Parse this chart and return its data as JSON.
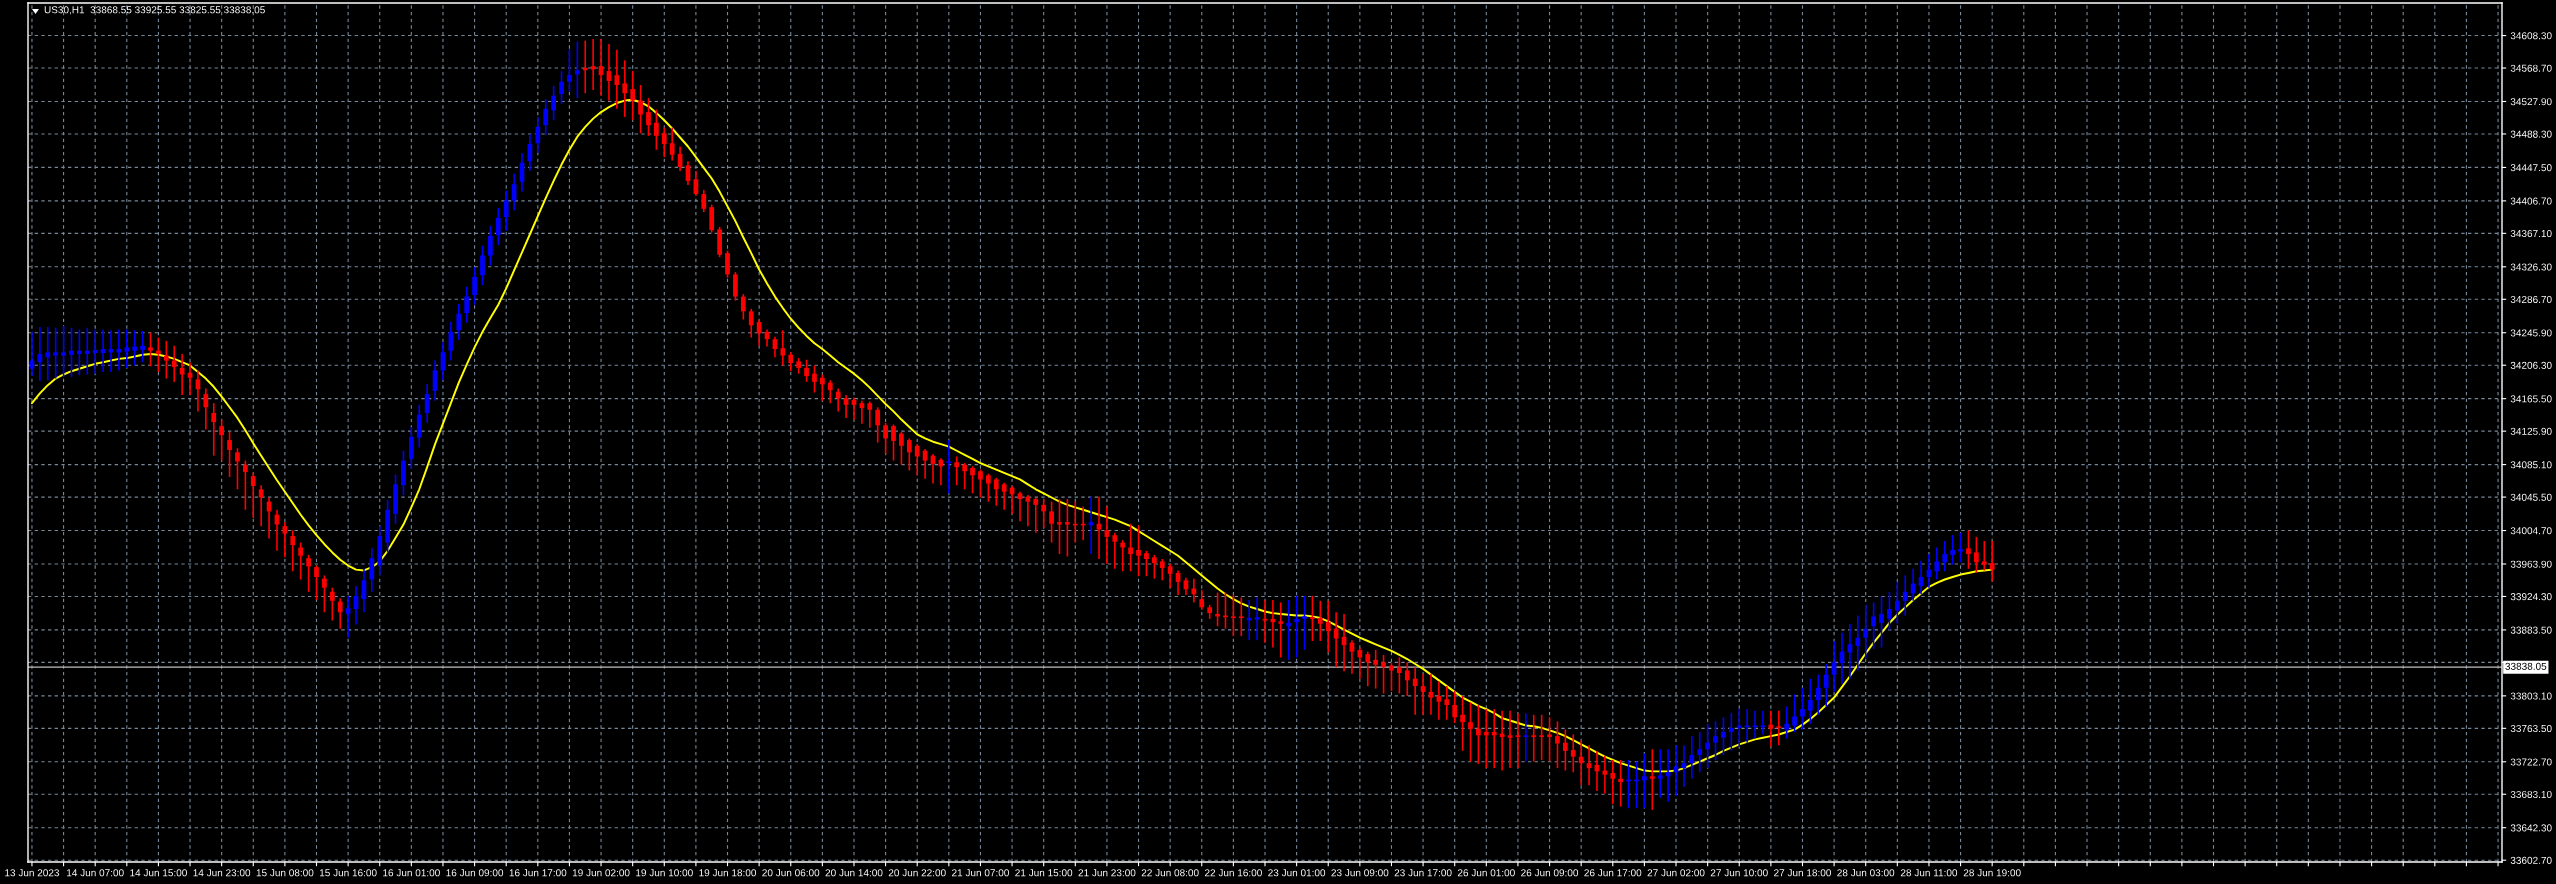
{
  "chart_data": {
    "type": "candlestick",
    "title": "US30,H1  33868.55 33925.55 33825.55 33838.05",
    "categories": [
      "13 Jun 2023",
      null,
      null,
      null,
      null,
      null,
      null,
      null,
      "14 Jun 07:00",
      null,
      null,
      null,
      null,
      null,
      null,
      null,
      "14 Jun 15:00",
      null,
      null,
      null,
      null,
      null,
      null,
      null,
      "14 Jun 23:00",
      null,
      null,
      null,
      null,
      null,
      null,
      null,
      "15 Jun 08:00",
      null,
      null,
      null,
      null,
      null,
      null,
      null,
      "15 Jun 16:00",
      null,
      null,
      null,
      null,
      null,
      null,
      null,
      "16 Jun 01:00",
      null,
      null,
      null,
      null,
      null,
      null,
      null,
      "16 Jun 09:00",
      null,
      null,
      null,
      null,
      null,
      null,
      null,
      "16 Jun 17:00",
      null,
      null,
      null,
      null,
      null,
      null,
      null,
      "19 Jun 02:00",
      null,
      null,
      null,
      null,
      null,
      null,
      null,
      "19 Jun 10:00",
      null,
      null,
      null,
      null,
      null,
      null,
      null,
      "19 Jun 18:00",
      null,
      null,
      null,
      null,
      null,
      null,
      null,
      "20 Jun 06:00",
      null,
      null,
      null,
      null,
      null,
      null,
      null,
      "20 Jun 14:00",
      null,
      null,
      null,
      null,
      null,
      null,
      null,
      "20 Jun 22:00",
      null,
      null,
      null,
      null,
      null,
      null,
      null,
      "21 Jun 07:00",
      null,
      null,
      null,
      null,
      null,
      null,
      null,
      "21 Jun 15:00",
      null,
      null,
      null,
      null,
      null,
      null,
      null,
      "21 Jun 23:00",
      null,
      null,
      null,
      null,
      null,
      null,
      null,
      "22 Jun 08:00",
      null,
      null,
      null,
      null,
      null,
      null,
      null,
      "22 Jun 16:00",
      null,
      null,
      null,
      null,
      null,
      null,
      null,
      "23 Jun 01:00",
      null,
      null,
      null,
      null,
      null,
      null,
      null,
      "23 Jun 09:00",
      null,
      null,
      null,
      null,
      null,
      null,
      null,
      "23 Jun 17:00",
      null,
      null,
      null,
      null,
      null,
      null,
      null,
      "26 Jun 01:00",
      null,
      null,
      null,
      null,
      null,
      null,
      null,
      "26 Jun 09:00",
      null,
      null,
      null,
      null,
      null,
      null,
      null,
      "26 Jun 17:00",
      null,
      null,
      null,
      null,
      null,
      null,
      null,
      "27 Jun 02:00",
      null,
      null,
      null,
      null,
      null,
      null,
      null,
      "27 Jun 10:00",
      null,
      null,
      null,
      null,
      null,
      null,
      null,
      "27 Jun 18:00",
      null,
      null,
      null,
      null,
      null,
      null,
      null,
      "28 Jun 03:00",
      null,
      null,
      null,
      null,
      null,
      null,
      null,
      "28 Jun 11:00",
      null,
      null,
      null,
      null,
      null,
      null,
      null,
      "28 Jun 19:00",
      null,
      null,
      null,
      null,
      null,
      null,
      null,
      null,
      null,
      null,
      null,
      null,
      null,
      null,
      null,
      null,
      null,
      null,
      null,
      null,
      null,
      null,
      null,
      null,
      null,
      null,
      null,
      null,
      null,
      null,
      null,
      null,
      null,
      null,
      null,
      null,
      null,
      null,
      null,
      null,
      null,
      null,
      null,
      null,
      null,
      null,
      null,
      null,
      null,
      null,
      null,
      null,
      null,
      null,
      null,
      null,
      null,
      null,
      null,
      null,
      null,
      null,
      null,
      null
    ],
    "ohlc": [
      [
        34202,
        34247,
        34193,
        34212
      ],
      [
        34210,
        34253,
        34187,
        34220
      ],
      [
        34216,
        34253,
        34188,
        34222
      ],
      [
        34218,
        34252,
        34190,
        34222
      ],
      [
        34218,
        34254,
        34192,
        34222
      ],
      [
        34219,
        34252,
        34192,
        34224
      ],
      [
        34220,
        34250,
        34194,
        34224
      ],
      [
        34220,
        34252,
        34195,
        34224
      ],
      [
        34221,
        34250,
        34196,
        34225
      ],
      [
        34221,
        34250,
        34198,
        34226
      ],
      [
        34222,
        34249,
        34198,
        34226
      ],
      [
        34222,
        34250,
        34200,
        34226
      ],
      [
        34223,
        34250,
        34203,
        34228
      ],
      [
        34224,
        34249,
        34206,
        34229
      ],
      [
        34225,
        34248,
        34210,
        34230
      ],
      [
        34228,
        34246,
        34205,
        34224
      ],
      [
        34224,
        34240,
        34198,
        34220
      ],
      [
        34218,
        34236,
        34190,
        34212
      ],
      [
        34212,
        34230,
        34186,
        34204
      ],
      [
        34203,
        34220,
        34170,
        34195
      ],
      [
        34197,
        34210,
        34170,
        34191
      ],
      [
        34189,
        34200,
        34150,
        34177
      ],
      [
        34171,
        34178,
        34128,
        34155
      ],
      [
        34148,
        34160,
        34096,
        34137
      ],
      [
        34132,
        34140,
        34090,
        34121
      ],
      [
        34115,
        34125,
        34070,
        34103
      ],
      [
        34100,
        34105,
        34055,
        34089
      ],
      [
        34085,
        34090,
        34030,
        34076
      ],
      [
        34071,
        34075,
        34020,
        34059
      ],
      [
        34055,
        34060,
        34010,
        34045
      ],
      [
        34040,
        34045,
        33995,
        34028
      ],
      [
        34024,
        34030,
        33980,
        34012
      ],
      [
        34010,
        34015,
        33972,
        34001
      ],
      [
        33998,
        34005,
        33955,
        33987
      ],
      [
        33984,
        33990,
        33945,
        33974
      ],
      [
        33971,
        33975,
        33930,
        33961
      ],
      [
        33960,
        33962,
        33920,
        33948
      ],
      [
        33946,
        33950,
        33905,
        33935
      ],
      [
        33930,
        33935,
        33895,
        33919
      ],
      [
        33918,
        33922,
        33885,
        33905
      ],
      [
        33903,
        33925,
        33874,
        33910
      ],
      [
        33909,
        33937,
        33890,
        33925
      ],
      [
        33921,
        33958,
        33905,
        33944
      ],
      [
        33945,
        33983,
        33930,
        33971
      ],
      [
        33962,
        34010,
        33950,
        33998
      ],
      [
        33990,
        34042,
        33978,
        34030
      ],
      [
        34025,
        34073,
        34013,
        34061
      ],
      [
        34060,
        34102,
        34048,
        34090
      ],
      [
        34092,
        34131,
        34080,
        34119
      ],
      [
        34118,
        34158,
        34106,
        34146
      ],
      [
        34148,
        34183,
        34136,
        34171
      ],
      [
        34175,
        34212,
        34163,
        34200
      ],
      [
        34200,
        34234,
        34188,
        34222
      ],
      [
        34224,
        34259,
        34212,
        34247
      ],
      [
        34249,
        34281,
        34237,
        34269
      ],
      [
        34270,
        34302,
        34258,
        34290
      ],
      [
        34292,
        34326,
        34280,
        34314
      ],
      [
        34316,
        34352,
        34304,
        34340
      ],
      [
        34340,
        34376,
        34328,
        34364
      ],
      [
        34365,
        34398,
        34353,
        34386
      ],
      [
        34387,
        34419,
        34370,
        34407
      ],
      [
        34407,
        34440,
        34395,
        34427
      ],
      [
        34430,
        34465,
        34418,
        34453
      ],
      [
        34455,
        34488,
        34443,
        34476
      ],
      [
        34477,
        34509,
        34465,
        34497
      ],
      [
        34499,
        34531,
        34487,
        34519
      ],
      [
        34517,
        34547,
        34505,
        34535
      ],
      [
        34537,
        34565,
        34525,
        34552
      ],
      [
        34552,
        34591,
        34540,
        34560
      ],
      [
        34561,
        34601,
        34532,
        34566
      ],
      [
        34569,
        34602,
        34538,
        34566
      ],
      [
        34571,
        34604,
        34542,
        34567
      ],
      [
        34571,
        34604,
        34535,
        34560
      ],
      [
        34565,
        34598,
        34529,
        34553
      ],
      [
        34560,
        34591,
        34519,
        34548
      ],
      [
        34550,
        34578,
        34509,
        34538
      ],
      [
        34543,
        34565,
        34505,
        34529
      ],
      [
        34529,
        34548,
        34489,
        34512
      ],
      [
        34515,
        34532,
        34486,
        34499
      ],
      [
        34502,
        34518,
        34469,
        34486
      ],
      [
        34489,
        34496,
        34460,
        34476
      ],
      [
        34477,
        34496,
        34456,
        34463
      ],
      [
        34464,
        34473,
        34443,
        34448
      ],
      [
        34450,
        34455,
        34426,
        34431
      ],
      [
        34433,
        34443,
        34413,
        34415
      ],
      [
        34415,
        34420,
        34393,
        34397
      ],
      [
        34399,
        34402,
        34368,
        34371
      ],
      [
        34372,
        34375,
        34338,
        34341
      ],
      [
        34343,
        34346,
        34313,
        34317
      ],
      [
        34317,
        34320,
        34285,
        34290
      ],
      [
        34290,
        34293,
        34262,
        34272
      ],
      [
        34272,
        34275,
        34240,
        34255
      ],
      [
        34259,
        34262,
        34230,
        34245
      ],
      [
        34247,
        34250,
        34229,
        34238
      ],
      [
        34238,
        34241,
        34216,
        34226
      ],
      [
        34227,
        34249,
        34206,
        34218
      ],
      [
        34219,
        34222,
        34199,
        34209
      ],
      [
        34211,
        34215,
        34196,
        34203
      ],
      [
        34203,
        34213,
        34186,
        34193
      ],
      [
        34196,
        34206,
        34173,
        34186
      ],
      [
        34191,
        34195,
        34163,
        34183
      ],
      [
        34185,
        34188,
        34160,
        34176
      ],
      [
        34174,
        34178,
        34150,
        34166
      ],
      [
        34166,
        34170,
        34142,
        34158
      ],
      [
        34164,
        34167,
        34140,
        34158
      ],
      [
        34160,
        34163,
        34135,
        34154
      ],
      [
        34160,
        34162,
        34130,
        34152
      ],
      [
        34152,
        34155,
        34112,
        34133
      ],
      [
        34133,
        34136,
        34098,
        34117
      ],
      [
        34132,
        34134,
        34090,
        34114
      ],
      [
        34123,
        34125,
        34085,
        34108
      ],
      [
        34115,
        34117,
        34078,
        34100
      ],
      [
        34108,
        34110,
        34072,
        34095
      ],
      [
        34102,
        34104,
        34068,
        34090
      ],
      [
        34096,
        34098,
        34062,
        34086
      ],
      [
        34091,
        34093,
        34060,
        34083
      ],
      [
        34087,
        34115,
        34050,
        34089
      ],
      [
        34088,
        34095,
        34060,
        34082
      ],
      [
        34085,
        34087,
        34055,
        34077
      ],
      [
        34081,
        34083,
        34050,
        34072
      ],
      [
        34077,
        34079,
        34045,
        34067
      ],
      [
        34072,
        34074,
        34040,
        34062
      ],
      [
        34067,
        34069,
        34035,
        34055
      ],
      [
        34061,
        34063,
        34030,
        34052
      ],
      [
        34057,
        34059,
        34025,
        34049
      ],
      [
        34050,
        34052,
        34016,
        34043
      ],
      [
        34046,
        34048,
        34010,
        34040
      ],
      [
        34043,
        34045,
        34002,
        34036
      ],
      [
        34036,
        34043,
        34008,
        34028
      ],
      [
        34028,
        34040,
        33990,
        34013
      ],
      [
        34015,
        34043,
        33976,
        34012
      ],
      [
        34015,
        34043,
        33973,
        34012
      ],
      [
        34013,
        34040,
        33990,
        34011
      ],
      [
        34013,
        34034,
        33993,
        34011
      ],
      [
        34011,
        34046,
        33976,
        34015
      ],
      [
        34013,
        34046,
        33970,
        34006
      ],
      [
        34005,
        34034,
        33964,
        33997
      ],
      [
        33999,
        34002,
        33958,
        33991
      ],
      [
        33990,
        33993,
        33955,
        33984
      ],
      [
        33984,
        34013,
        33955,
        33976
      ],
      [
        33981,
        34011,
        33949,
        33974
      ],
      [
        33977,
        33980,
        33949,
        33970
      ],
      [
        33972,
        33975,
        33946,
        33965
      ],
      [
        33967,
        33970,
        33944,
        33959
      ],
      [
        33961,
        33964,
        33935,
        33952
      ],
      [
        33953,
        33956,
        33926,
        33942
      ],
      [
        33944,
        33947,
        33926,
        33933
      ],
      [
        33934,
        33946,
        33917,
        33927
      ],
      [
        33921,
        33932,
        33908,
        33911
      ],
      [
        33911,
        33914,
        33897,
        33904
      ],
      [
        33903,
        33929,
        33888,
        33900
      ],
      [
        33901,
        33929,
        33885,
        33899
      ],
      [
        33900,
        33926,
        33876,
        33898
      ],
      [
        33900,
        33923,
        33876,
        33898
      ],
      [
        33895,
        33920,
        33871,
        33898
      ],
      [
        33896,
        33923,
        33871,
        33899
      ],
      [
        33897,
        33920,
        33868,
        33895
      ],
      [
        33897,
        33920,
        33862,
        33893
      ],
      [
        33894,
        33917,
        33850,
        33891
      ],
      [
        33888,
        33920,
        33847,
        33892
      ],
      [
        33893,
        33925,
        33850,
        33897
      ],
      [
        33897,
        33925,
        33859,
        33900
      ],
      [
        33899,
        33925,
        33870,
        33897
      ],
      [
        33898,
        33919,
        33870,
        33891
      ],
      [
        33893,
        33919,
        33856,
        33882
      ],
      [
        33885,
        33905,
        33838,
        33873
      ],
      [
        33875,
        33903,
        33833,
        33865
      ],
      [
        33868,
        33871,
        33830,
        33857
      ],
      [
        33859,
        33862,
        33824,
        33850
      ],
      [
        33854,
        33857,
        33815,
        33844
      ],
      [
        33847,
        33859,
        33812,
        33841
      ],
      [
        33844,
        33853,
        33806,
        33838
      ],
      [
        33840,
        33843,
        33809,
        33834
      ],
      [
        33838,
        33850,
        33806,
        33831
      ],
      [
        33834,
        33844,
        33803,
        33822
      ],
      [
        33824,
        33838,
        33780,
        33815
      ],
      [
        33815,
        33830,
        33780,
        33808
      ],
      [
        33808,
        33830,
        33780,
        33801
      ],
      [
        33803,
        33821,
        33774,
        33796
      ],
      [
        33799,
        33815,
        33774,
        33792
      ],
      [
        33792,
        33809,
        33770,
        33777
      ],
      [
        33780,
        33803,
        33736,
        33771
      ],
      [
        33771,
        33795,
        33723,
        33763
      ],
      [
        33763,
        33792,
        33720,
        33755
      ],
      [
        33759,
        33787,
        33715,
        33755
      ],
      [
        33759,
        33787,
        33715,
        33755
      ],
      [
        33757,
        33785,
        33712,
        33753
      ],
      [
        33755,
        33785,
        33715,
        33752
      ],
      [
        33755,
        33782,
        33715,
        33753
      ],
      [
        33753,
        33782,
        33723,
        33755
      ],
      [
        33755,
        33780,
        33723,
        33753
      ],
      [
        33755,
        33780,
        33725,
        33753
      ],
      [
        33756,
        33777,
        33723,
        33753
      ],
      [
        33754,
        33772,
        33715,
        33745
      ],
      [
        33746,
        33762,
        33712,
        33736
      ],
      [
        33737,
        33756,
        33710,
        33729
      ],
      [
        33729,
        33749,
        33694,
        33721
      ],
      [
        33721,
        33743,
        33694,
        33715
      ],
      [
        33719,
        33736,
        33687,
        33711
      ],
      [
        33712,
        33730,
        33684,
        33707
      ],
      [
        33709,
        33725,
        33671,
        33702
      ],
      [
        33702,
        33725,
        33668,
        33698
      ],
      [
        33699,
        33725,
        33666,
        33701
      ],
      [
        33699,
        33723,
        33666,
        33701
      ],
      [
        33700,
        33733,
        33666,
        33705
      ],
      [
        33705,
        33738,
        33664,
        33702
      ],
      [
        33702,
        33738,
        33679,
        33706
      ],
      [
        33705,
        33738,
        33674,
        33710
      ],
      [
        33710,
        33743,
        33681,
        33717
      ],
      [
        33715,
        33743,
        33692,
        33721
      ],
      [
        33721,
        33754,
        33702,
        33731
      ],
      [
        33731,
        33759,
        33710,
        33738
      ],
      [
        33738,
        33769,
        33715,
        33746
      ],
      [
        33746,
        33772,
        33725,
        33754
      ],
      [
        33752,
        33777,
        33731,
        33759
      ],
      [
        33759,
        33782,
        33736,
        33764
      ],
      [
        33764,
        33787,
        33741,
        33767
      ],
      [
        33765,
        33787,
        33746,
        33767
      ],
      [
        33765,
        33785,
        33751,
        33767
      ],
      [
        33765,
        33785,
        33756,
        33767
      ],
      [
        33768,
        33785,
        33741,
        33763
      ],
      [
        33766,
        33785,
        33743,
        33764
      ],
      [
        33762,
        33790,
        33751,
        33769
      ],
      [
        33767,
        33805,
        33759,
        33778
      ],
      [
        33778,
        33813,
        33762,
        33787
      ],
      [
        33785,
        33824,
        33769,
        33798
      ],
      [
        33798,
        33829,
        33780,
        33813
      ],
      [
        33813,
        33842,
        33790,
        33829
      ],
      [
        33829,
        33870,
        33808,
        33844
      ],
      [
        33843,
        33880,
        33818,
        33857
      ],
      [
        33856,
        33891,
        33824,
        33866
      ],
      [
        33864,
        33901,
        33834,
        33874
      ],
      [
        33874,
        33914,
        33849,
        33885
      ],
      [
        33888,
        33917,
        33860,
        33900
      ],
      [
        33892,
        33924,
        33862,
        33903
      ],
      [
        33897,
        33930,
        33883,
        33909
      ],
      [
        33907,
        33942,
        33891,
        33919
      ],
      [
        33919,
        33950,
        33901,
        33930
      ],
      [
        33928,
        33958,
        33919,
        33940
      ],
      [
        33937,
        33968,
        33927,
        33948
      ],
      [
        33948,
        33976,
        33935,
        33957
      ],
      [
        33955,
        33984,
        33945,
        33967
      ],
      [
        33966,
        33992,
        33955,
        33976
      ],
      [
        33975,
        33999,
        33963,
        33981
      ],
      [
        33979,
        34002,
        33966,
        33982
      ],
      [
        33983,
        34005,
        33958,
        33976
      ],
      [
        33978,
        33997,
        33953,
        33966
      ],
      [
        33967,
        33992,
        33956,
        33963
      ],
      [
        33965,
        33992,
        33943,
        33957
      ],
      null,
      null,
      null,
      null,
      null,
      null,
      null,
      null,
      null,
      null,
      null,
      null,
      null,
      null,
      null,
      null,
      null,
      null,
      null,
      null,
      null,
      null,
      null,
      null,
      null,
      null,
      null,
      null,
      null,
      null,
      null,
      null,
      null,
      null,
      null,
      null,
      null,
      null,
      null,
      null,
      null,
      null,
      null,
      null,
      null,
      null,
      null,
      null,
      null,
      null,
      null,
      null,
      null,
      null,
      null,
      null,
      null,
      null,
      null,
      null,
      null,
      null,
      null,
      null
    ],
    "colors": [
      "#0000ff",
      "#0000ff",
      "#0000ff",
      "#0000ff",
      "#0000ff",
      "#0000ff",
      "#0000ff",
      "#0000ff",
      "#0000ff",
      "#0000ff",
      "#0000ff",
      "#0000ff",
      "#0000ff",
      "#0000ff",
      "#0000ff",
      "#ff0000",
      "#ff0000",
      "#ff0000",
      "#ff0000",
      "#ff0000",
      "#ff0000",
      "#ff0000",
      "#ff0000",
      "#ff0000",
      "#ff0000",
      "#ff0000",
      "#ff0000",
      "#ff0000",
      "#ff0000",
      "#ff0000",
      "#ff0000",
      "#ff0000",
      "#ff0000",
      "#ff0000",
      "#ff0000",
      "#ff0000",
      "#ff0000",
      "#ff0000",
      "#ff0000",
      "#ff0000",
      "#0000ff",
      "#0000ff",
      "#0000ff",
      "#0000ff",
      "#0000ff",
      "#0000ff",
      "#0000ff",
      "#0000ff",
      "#0000ff",
      "#0000ff",
      "#0000ff",
      "#0000ff",
      "#0000ff",
      "#0000ff",
      "#0000ff",
      "#0000ff",
      "#0000ff",
      "#0000ff",
      "#0000ff",
      "#0000ff",
      "#0000ff",
      "#0000ff",
      "#0000ff",
      "#0000ff",
      "#0000ff",
      "#0000ff",
      "#0000ff",
      "#0000ff",
      "#0000ff",
      "#0000ff",
      "#ff0000",
      "#ff0000",
      "#ff0000",
      "#ff0000",
      "#ff0000",
      "#ff0000",
      "#ff0000",
      "#ff0000",
      "#ff0000",
      "#ff0000",
      "#ff0000",
      "#ff0000",
      "#ff0000",
      "#ff0000",
      "#ff0000",
      "#ff0000",
      "#ff0000",
      "#ff0000",
      "#ff0000",
      "#ff0000",
      "#ff0000",
      "#ff0000",
      "#ff0000",
      "#ff0000",
      "#ff0000",
      "#ff0000",
      "#ff0000",
      "#ff0000",
      "#ff0000",
      "#ff0000",
      "#ff0000",
      "#ff0000",
      "#ff0000",
      "#ff0000",
      "#ff0000",
      "#ff0000",
      "#ff0000",
      "#ff0000",
      "#ff0000",
      "#ff0000",
      "#ff0000",
      "#ff0000",
      "#ff0000",
      "#ff0000",
      "#ff0000",
      "#ff0000",
      "#0000ff",
      "#ff0000",
      "#ff0000",
      "#ff0000",
      "#ff0000",
      "#ff0000",
      "#ff0000",
      "#ff0000",
      "#ff0000",
      "#ff0000",
      "#ff0000",
      "#ff0000",
      "#ff0000",
      "#ff0000",
      "#ff0000",
      "#ff0000",
      "#ff0000",
      "#ff0000",
      "#0000ff",
      "#ff0000",
      "#ff0000",
      "#ff0000",
      "#ff0000",
      "#ff0000",
      "#ff0000",
      "#ff0000",
      "#ff0000",
      "#ff0000",
      "#ff0000",
      "#ff0000",
      "#ff0000",
      "#ff0000",
      "#ff0000",
      "#ff0000",
      "#ff0000",
      "#ff0000",
      "#ff0000",
      "#ff0000",
      "#0000ff",
      "#0000ff",
      "#ff0000",
      "#ff0000",
      "#ff0000",
      "#0000ff",
      "#0000ff",
      "#0000ff",
      "#ff0000",
      "#ff0000",
      "#ff0000",
      "#ff0000",
      "#ff0000",
      "#ff0000",
      "#ff0000",
      "#ff0000",
      "#ff0000",
      "#ff0000",
      "#ff0000",
      "#ff0000",
      "#ff0000",
      "#ff0000",
      "#ff0000",
      "#ff0000",
      "#ff0000",
      "#ff0000",
      "#ff0000",
      "#ff0000",
      "#ff0000",
      "#ff0000",
      "#ff0000",
      "#ff0000",
      "#ff0000",
      "#ff0000",
      "#ff0000",
      "#0000ff",
      "#ff0000",
      "#ff0000",
      "#ff0000",
      "#ff0000",
      "#ff0000",
      "#ff0000",
      "#ff0000",
      "#ff0000",
      "#ff0000",
      "#ff0000",
      "#ff0000",
      "#ff0000",
      "#0000ff",
      "#0000ff",
      "#0000ff",
      "#ff0000",
      "#0000ff",
      "#0000ff",
      "#0000ff",
      "#0000ff",
      "#0000ff",
      "#0000ff",
      "#0000ff",
      "#0000ff",
      "#0000ff",
      "#0000ff",
      "#0000ff",
      "#0000ff",
      "#0000ff",
      "#0000ff",
      "#ff0000",
      "#ff0000",
      "#0000ff",
      "#0000ff",
      "#0000ff",
      "#0000ff",
      "#0000ff",
      "#0000ff",
      "#0000ff",
      "#0000ff",
      "#0000ff",
      "#0000ff",
      "#0000ff",
      "#0000ff",
      "#0000ff",
      "#0000ff",
      "#0000ff",
      "#0000ff",
      "#0000ff",
      "#0000ff",
      "#0000ff",
      "#0000ff",
      "#0000ff",
      "#0000ff",
      "#0000ff",
      "#ff0000",
      "#ff0000",
      "#ff0000",
      "#ff0000",
      null,
      null,
      null,
      null,
      null,
      null,
      null,
      null,
      null,
      null,
      null,
      null,
      null,
      null,
      null,
      null,
      null,
      null,
      null,
      null,
      null,
      null,
      null,
      null,
      null,
      null,
      null,
      null,
      null,
      null,
      null,
      null,
      null,
      null,
      null,
      null,
      null,
      null,
      null,
      null,
      null,
      null,
      null,
      null,
      null,
      null,
      null,
      null,
      null,
      null,
      null,
      null,
      null,
      null,
      null,
      null,
      null,
      null,
      null,
      null,
      null,
      null,
      null,
      null
    ],
    "series": [
      {
        "type": "line",
        "color": "#ffff00",
        "values": [
          34160,
          34172,
          34182,
          34190,
          34195,
          34199,
          34202,
          34205,
          34208,
          34210,
          34212,
          34214,
          34215,
          34217,
          34219,
          34220,
          34219,
          34217,
          34214,
          34210,
          34206,
          34198,
          34190,
          34180,
          34168,
          34155,
          34142,
          34127,
          34111,
          34096,
          34081,
          34066,
          34052,
          34038,
          34024,
          34011,
          33999,
          33988,
          33978,
          33969,
          33962,
          33957,
          33956,
          33960,
          33967,
          33980,
          33996,
          34012,
          34033,
          34055,
          34082,
          34110,
          34135,
          34160,
          34185,
          34207,
          34228,
          34247,
          34264,
          34280,
          34300,
          34322,
          34344,
          34366,
          34388,
          34410,
          34431,
          34451,
          34469,
          34485,
          34497,
          34507,
          34515,
          34521,
          34526,
          34529,
          34530,
          34527,
          34522,
          34514,
          34505,
          34495,
          34484,
          34473,
          34460,
          34447,
          34434,
          34418,
          34400,
          34382,
          34362,
          34343,
          34323,
          34306,
          34290,
          34276,
          34263,
          34252,
          34242,
          34233,
          34226,
          34218,
          34210,
          34203,
          34196,
          34188,
          34179,
          34169,
          34159,
          34150,
          34140,
          34131,
          34122,
          34117,
          34113,
          34110,
          34107,
          34102,
          34097,
          34092,
          34087,
          34083,
          34079,
          34075,
          34071,
          34067,
          34061,
          34055,
          34050,
          34045,
          34040,
          34036,
          34033,
          34030,
          34027,
          34024,
          34021,
          34018,
          34014,
          34010,
          34004,
          33998,
          33992,
          33986,
          33980,
          33974,
          33966,
          33958,
          33950,
          33942,
          33934,
          33927,
          33921,
          33916,
          33912,
          33909,
          33906,
          33904,
          33903,
          33902,
          33901,
          33901,
          33900,
          33898,
          33894,
          33889,
          33884,
          33879,
          33874,
          33870,
          33866,
          33862,
          33858,
          33853,
          33848,
          33842,
          33836,
          33829,
          33822,
          33815,
          33808,
          33801,
          33796,
          33791,
          33787,
          33782,
          33776,
          33773,
          33770,
          33767,
          33766,
          33764,
          33761,
          33758,
          33754,
          33749,
          33744,
          33739,
          33734,
          33729,
          33725,
          33721,
          33718,
          33715,
          33712,
          33711,
          33711,
          33711,
          33712,
          33715,
          33719,
          33723,
          33727,
          33731,
          33736,
          33740,
          33744,
          33747,
          33750,
          33752,
          33754,
          33756,
          33759,
          33762,
          33768,
          33775,
          33783,
          33792,
          33801,
          33814,
          33827,
          33841,
          33855,
          33868,
          33880,
          33892,
          33902,
          33911,
          33920,
          33928,
          33936,
          33941,
          33945,
          33948,
          33951,
          33953,
          33955,
          33956,
          33957,
          null,
          null,
          null,
          null,
          null,
          null,
          null,
          null,
          null,
          null,
          null,
          null,
          null,
          null,
          null,
          null,
          null,
          null,
          null,
          null,
          null,
          null,
          null,
          null,
          null,
          null,
          null,
          null,
          null,
          null,
          null,
          null,
          null,
          null,
          null,
          null,
          null,
          null,
          null,
          null,
          null,
          null,
          null,
          null,
          null,
          null,
          null,
          null,
          null,
          null,
          null,
          null,
          null,
          null,
          null,
          null,
          null,
          null,
          null,
          null,
          null,
          null,
          null,
          null
        ]
      }
    ],
    "ylim": [
      33600.5,
      34648
    ],
    "yticks": [
      {
        "value": 34608.3,
        "label": "34608.30"
      },
      {
        "value": 34568.7,
        "label": "34568.70"
      },
      {
        "value": 34527.9,
        "label": "34527.90"
      },
      {
        "value": 34488.3,
        "label": "34488.30"
      },
      {
        "value": 34447.5,
        "label": "34447.50"
      },
      {
        "value": 34406.7,
        "label": "34406.70"
      },
      {
        "value": 34367.1,
        "label": "34367.10"
      },
      {
        "value": 34326.3,
        "label": "34326.30"
      },
      {
        "value": 34286.7,
        "label": "34286.70"
      },
      {
        "value": 34245.9,
        "label": "34245.90"
      },
      {
        "value": 34206.3,
        "label": "34206.30"
      },
      {
        "value": 34165.5,
        "label": "34165.50"
      },
      {
        "value": 34125.9,
        "label": "34125.90"
      },
      {
        "value": 34085.1,
        "label": "34085.10"
      },
      {
        "value": 34045.5,
        "label": "34045.50"
      },
      {
        "value": 34004.7,
        "label": "34004.70"
      },
      {
        "value": 33963.9,
        "label": "33963.90"
      },
      {
        "value": 33924.3,
        "label": "33924.30"
      },
      {
        "value": 33883.5,
        "label": "33883.50"
      },
      {
        "value": 33843.9,
        "label": null
      },
      {
        "value": 33803.1,
        "label": "33803.10"
      },
      {
        "value": 33763.5,
        "label": "33763.50"
      },
      {
        "value": 33722.7,
        "label": "33722.70"
      },
      {
        "value": 33683.1,
        "label": "33683.10"
      },
      {
        "value": 33642.3,
        "label": "33642.30"
      },
      {
        "value": 33602.7,
        "label": "33602.70"
      }
    ],
    "ref_lines": [
      {
        "axis": "y",
        "value": 33838.05,
        "label": "33838.05",
        "color": "#c0c0c0"
      }
    ],
    "grid": true
  }
}
